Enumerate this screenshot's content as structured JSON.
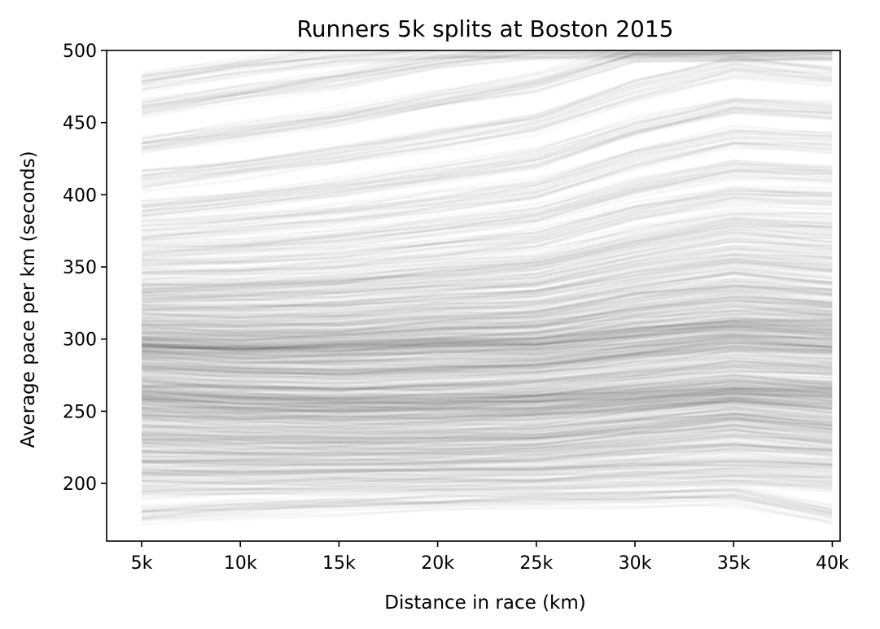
{
  "chart_data": {
    "type": "line",
    "title": "Runners 5k splits at Boston 2015",
    "xlabel": "Distance in race (km)",
    "ylabel": "Average pace per km (seconds)",
    "categories": [
      "5k",
      "10k",
      "15k",
      "20k",
      "25k",
      "30k",
      "35k",
      "40k"
    ],
    "ylim": [
      160,
      500
    ],
    "yticks": [
      200,
      250,
      300,
      350,
      400,
      450,
      500
    ],
    "grid": false,
    "line_color": "#000000",
    "line_opacity": 0.02,
    "series": [
      {
        "values": [
          178,
          182,
          185,
          187,
          189,
          190,
          191,
          178
        ]
      },
      {
        "values": [
          195,
          196,
          197,
          198,
          199,
          201,
          203,
          200
        ]
      },
      {
        "values": [
          205,
          205,
          205,
          206,
          207,
          210,
          212,
          210
        ]
      },
      {
        "values": [
          212,
          212,
          212,
          213,
          214,
          218,
          222,
          218
        ]
      },
      {
        "values": [
          218,
          217,
          217,
          218,
          220,
          225,
          230,
          225
        ]
      },
      {
        "values": [
          225,
          223,
          223,
          224,
          226,
          232,
          238,
          232
        ]
      },
      {
        "values": [
          232,
          230,
          229,
          230,
          232,
          238,
          244,
          238
        ]
      },
      {
        "values": [
          238,
          236,
          235,
          236,
          238,
          244,
          250,
          244
        ]
      },
      {
        "values": [
          244,
          242,
          241,
          242,
          244,
          250,
          256,
          250
        ]
      },
      {
        "values": [
          250,
          247,
          246,
          247,
          249,
          255,
          261,
          256
        ]
      },
      {
        "values": [
          255,
          252,
          251,
          252,
          254,
          259,
          262,
          260
        ]
      },
      {
        "values": [
          258,
          254,
          253,
          254,
          256,
          260,
          264,
          262
        ]
      },
      {
        "values": [
          260,
          256,
          255,
          256,
          258,
          263,
          268,
          265
        ]
      },
      {
        "values": [
          265,
          262,
          261,
          262,
          264,
          270,
          276,
          272
        ]
      },
      {
        "values": [
          270,
          267,
          266,
          268,
          270,
          277,
          284,
          280
        ]
      },
      {
        "values": [
          275,
          272,
          272,
          274,
          276,
          283,
          290,
          286
        ]
      },
      {
        "values": [
          280,
          277,
          277,
          279,
          281,
          289,
          296,
          292
        ]
      },
      {
        "values": [
          285,
          282,
          282,
          284,
          286,
          293,
          300,
          296
        ]
      },
      {
        "values": [
          290,
          288,
          288,
          290,
          291,
          298,
          305,
          300
        ]
      },
      {
        "values": [
          293,
          291,
          292,
          295,
          296,
          303,
          308,
          305
        ]
      },
      {
        "values": [
          295,
          293,
          294,
          297,
          298,
          306,
          312,
          310
        ]
      },
      {
        "values": [
          298,
          297,
          298,
          301,
          303,
          312,
          318,
          316
        ]
      },
      {
        "values": [
          302,
          301,
          302,
          306,
          308,
          318,
          325,
          320
        ]
      },
      {
        "values": [
          307,
          306,
          307,
          311,
          314,
          325,
          333,
          328
        ]
      },
      {
        "values": [
          312,
          311,
          313,
          317,
          320,
          332,
          340,
          335
        ]
      },
      {
        "values": [
          318,
          317,
          319,
          324,
          328,
          340,
          350,
          345
        ]
      },
      {
        "values": [
          325,
          325,
          327,
          332,
          336,
          350,
          360,
          355
        ]
      },
      {
        "values": [
          332,
          333,
          336,
          341,
          346,
          361,
          372,
          368
        ]
      },
      {
        "values": [
          340,
          342,
          345,
          351,
          357,
          373,
          385,
          382
        ]
      },
      {
        "values": [
          350,
          352,
          356,
          363,
          370,
          388,
          400,
          398
        ]
      },
      {
        "values": [
          362,
          365,
          370,
          378,
          386,
          405,
          418,
          415
        ]
      },
      {
        "values": [
          375,
          380,
          386,
          395,
          404,
          425,
          440,
          436
        ]
      },
      {
        "values": [
          390,
          397,
          405,
          415,
          425,
          447,
          462,
          458
        ]
      },
      {
        "values": [
          410,
          418,
          427,
          438,
          449,
          472,
          488,
          482
        ]
      },
      {
        "values": [
          435,
          444,
          454,
          466,
          478,
          498,
          500,
          500
        ]
      },
      {
        "values": [
          460,
          470,
          480,
          492,
          500,
          500,
          500,
          500
        ]
      },
      {
        "values": [
          478,
          488,
          496,
          500,
          500,
          500,
          500,
          500
        ]
      }
    ]
  }
}
